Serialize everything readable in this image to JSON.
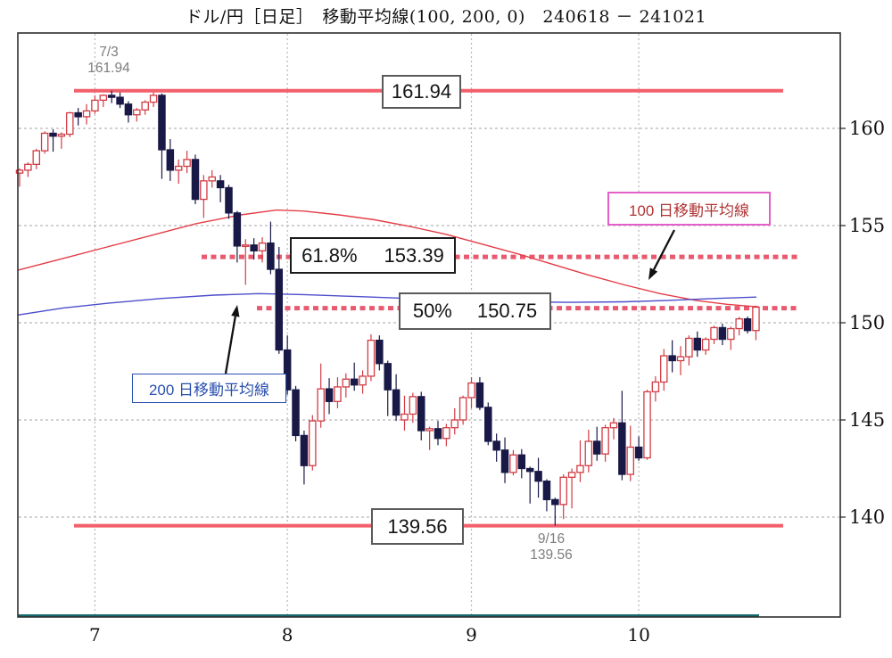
{
  "title": "ドル/円［日足］　移動平均線(100, 200, 0)　240618 － 241021",
  "price_boxes": {
    "resistance": "161.94",
    "support": "139.56"
  },
  "fib_labels": {
    "p618": {
      "pct": "61.8%",
      "price": "153.39"
    },
    "p50": {
      "pct": "50%",
      "price": "150.75"
    }
  },
  "ma_labels": {
    "ma100": "100 日移動平均線",
    "ma200": "200 日移動平均線"
  },
  "peak_annotation": {
    "date": "7/3",
    "price": "161.94"
  },
  "trough_annotation": {
    "date": "9/16",
    "price": "139.56"
  },
  "colors": {
    "solid_level_line": "#f2606b",
    "dotted_level_line": "#e85a6e",
    "candle_up": "#d23c44",
    "candle_down": "#191947",
    "ma100_line": "#e43d47",
    "ma200_line": "#4d4dcc",
    "ma100_box_border": "#e45fc8",
    "ma100_box_text": "#b03535",
    "ma200_box": "#2a4fae",
    "baseline": "#176b70",
    "grid": "#b8b8b8",
    "frame": "#2f2f2f",
    "annotation_text": "#7d7d7d"
  },
  "chart_data": {
    "type": "candlestick",
    "instrument": "ドル/円",
    "timeframe": "日足",
    "ma_settings": "移動平均線(100, 200, 0)",
    "period_start": "240618",
    "period_end": "241021",
    "y_axis": {
      "tick_labels": [
        "160",
        "155",
        "150",
        "145",
        "140"
      ],
      "tick_values": [
        160,
        155,
        150,
        145,
        140
      ],
      "range": [
        138.6,
        162.9
      ]
    },
    "x_axis": {
      "month_tick_labels": [
        "7",
        "8",
        "9",
        "10"
      ],
      "month_tick_candle_indices": [
        9,
        32,
        54,
        74
      ]
    },
    "levels": {
      "resistance": 161.94,
      "support": 139.56,
      "fib_61_8": 153.39,
      "fib_50": 150.75
    },
    "dates": [
      "6/18",
      "6/19",
      "6/20",
      "6/21",
      "6/24",
      "6/25",
      "6/26",
      "6/27",
      "6/28",
      "7/1",
      "7/2",
      "7/3",
      "7/4",
      "7/5",
      "7/8",
      "7/9",
      "7/10",
      "7/11",
      "7/12",
      "7/15",
      "7/16",
      "7/17",
      "7/18",
      "7/19",
      "7/22",
      "7/23",
      "7/24",
      "7/25",
      "7/26",
      "7/29",
      "7/30",
      "7/31",
      "8/1",
      "8/2",
      "8/5",
      "8/6",
      "8/7",
      "8/8",
      "8/9",
      "8/12",
      "8/13",
      "8/14",
      "8/15",
      "8/16",
      "8/19",
      "8/20",
      "8/21",
      "8/22",
      "8/23",
      "8/26",
      "8/27",
      "8/28",
      "8/29",
      "8/30",
      "9/2",
      "9/3",
      "9/4",
      "9/5",
      "9/6",
      "9/9",
      "9/10",
      "9/11",
      "9/12",
      "9/13",
      "9/16",
      "9/17",
      "9/18",
      "9/19",
      "9/20",
      "9/24",
      "9/25",
      "9/26",
      "9/27",
      "9/30",
      "10/1",
      "10/2",
      "10/3",
      "10/4",
      "10/7",
      "10/8",
      "10/9",
      "10/10",
      "10/11",
      "10/14",
      "10/15",
      "10/16",
      "10/17",
      "10/18",
      "10/21"
    ],
    "candles": [
      [
        157.7,
        157.95,
        157.0,
        157.85
      ],
      [
        157.85,
        158.25,
        157.5,
        158.15
      ],
      [
        158.15,
        158.95,
        157.9,
        158.85
      ],
      [
        158.85,
        159.85,
        158.7,
        159.75
      ],
      [
        159.75,
        159.95,
        158.8,
        159.6
      ],
      [
        159.6,
        159.8,
        158.95,
        159.7
      ],
      [
        159.7,
        160.85,
        159.55,
        160.8
      ],
      [
        160.8,
        161.05,
        160.15,
        160.6
      ],
      [
        160.6,
        161.25,
        160.2,
        160.9
      ],
      [
        160.9,
        161.7,
        160.75,
        161.45
      ],
      [
        161.45,
        161.75,
        161.1,
        161.7
      ],
      [
        161.7,
        161.94,
        161.3,
        161.6
      ],
      [
        161.6,
        161.85,
        161.05,
        161.25
      ],
      [
        161.25,
        161.4,
        160.3,
        160.7
      ],
      [
        160.7,
        161.05,
        160.35,
        160.95
      ],
      [
        160.95,
        161.45,
        160.7,
        161.35
      ],
      [
        161.35,
        161.85,
        161.1,
        161.7
      ],
      [
        161.7,
        161.8,
        157.4,
        158.9
      ],
      [
        158.9,
        159.45,
        157.3,
        157.85
      ],
      [
        157.85,
        158.4,
        157.15,
        158.05
      ],
      [
        158.05,
        158.85,
        157.7,
        158.4
      ],
      [
        158.4,
        158.65,
        156.1,
        156.35
      ],
      [
        156.35,
        157.6,
        155.4,
        157.3
      ],
      [
        157.3,
        157.85,
        156.95,
        157.5
      ],
      [
        157.3,
        157.6,
        156.2,
        156.95
      ],
      [
        156.95,
        157.1,
        155.35,
        155.65
      ],
      [
        155.65,
        155.75,
        153.1,
        153.95
      ],
      [
        153.95,
        154.3,
        151.95,
        154.0
      ],
      [
        154.0,
        154.35,
        153.25,
        153.7
      ],
      [
        153.7,
        154.4,
        153.1,
        154.1
      ],
      [
        154.1,
        155.2,
        152.5,
        152.75
      ],
      [
        152.75,
        153.9,
        148.4,
        148.6
      ],
      [
        148.6,
        149.35,
        146.3,
        146.55
      ],
      [
        146.55,
        146.75,
        143.9,
        144.2
      ],
      [
        144.2,
        144.45,
        141.68,
        142.65
      ],
      [
        142.65,
        145.25,
        142.4,
        144.95
      ],
      [
        144.95,
        147.9,
        144.6,
        146.6
      ],
      [
        146.6,
        147.15,
        145.3,
        145.95
      ],
      [
        145.95,
        147.2,
        145.6,
        146.7
      ],
      [
        146.7,
        147.4,
        146.15,
        147.1
      ],
      [
        147.1,
        147.95,
        146.5,
        146.8
      ],
      [
        146.8,
        147.55,
        146.35,
        147.25
      ],
      [
        147.25,
        149.4,
        147.0,
        149.1
      ],
      [
        149.1,
        149.35,
        147.55,
        147.9
      ],
      [
        147.9,
        148.05,
        145.2,
        146.55
      ],
      [
        146.55,
        147.35,
        144.95,
        145.25
      ],
      [
        145.0,
        146.25,
        144.45,
        145.3
      ],
      [
        145.3,
        146.4,
        144.85,
        146.2
      ],
      [
        146.2,
        146.45,
        143.95,
        144.45
      ],
      [
        144.45,
        144.65,
        143.45,
        144.55
      ],
      [
        144.55,
        144.95,
        143.7,
        144.05
      ],
      [
        144.05,
        144.8,
        143.65,
        144.6
      ],
      [
        144.6,
        145.6,
        144.25,
        145.0
      ],
      [
        145.0,
        146.25,
        144.75,
        146.15
      ],
      [
        146.15,
        147.2,
        145.6,
        146.9
      ],
      [
        146.9,
        147.2,
        145.5,
        145.65
      ],
      [
        145.65,
        145.9,
        143.7,
        143.9
      ],
      [
        143.9,
        144.3,
        142.85,
        143.45
      ],
      [
        143.45,
        144.1,
        141.75,
        142.3
      ],
      [
        142.3,
        143.45,
        142.15,
        143.2
      ],
      [
        143.2,
        143.5,
        142.0,
        142.5
      ],
      [
        142.5,
        142.6,
        140.7,
        142.35
      ],
      [
        142.35,
        143.05,
        141.0,
        141.85
      ],
      [
        141.85,
        141.95,
        140.3,
        140.9
      ],
      [
        140.9,
        141.0,
        139.56,
        140.65
      ],
      [
        140.65,
        142.2,
        139.9,
        142.05
      ],
      [
        142.05,
        142.5,
        140.45,
        142.3
      ],
      [
        142.3,
        143.95,
        141.8,
        142.65
      ],
      [
        142.65,
        144.5,
        142.3,
        143.9
      ],
      [
        143.9,
        144.65,
        142.9,
        143.25
      ],
      [
        143.25,
        144.75,
        142.85,
        144.6
      ],
      [
        144.6,
        145.1,
        144.0,
        144.85
      ],
      [
        144.85,
        146.5,
        141.9,
        142.2
      ],
      [
        142.2,
        144.7,
        141.85,
        143.6
      ],
      [
        143.6,
        144.15,
        142.9,
        143.05
      ],
      [
        143.05,
        146.55,
        142.95,
        146.45
      ],
      [
        146.45,
        147.25,
        145.95,
        146.95
      ],
      [
        146.95,
        148.65,
        146.5,
        148.3
      ],
      [
        148.3,
        149.1,
        147.45,
        148.05
      ],
      [
        148.05,
        148.8,
        147.3,
        148.25
      ],
      [
        148.25,
        149.35,
        147.8,
        149.2
      ],
      [
        149.2,
        149.55,
        148.25,
        148.6
      ],
      [
        148.6,
        149.25,
        148.35,
        149.15
      ],
      [
        149.15,
        149.85,
        148.9,
        149.75
      ],
      [
        149.75,
        149.95,
        148.85,
        149.15
      ],
      [
        149.15,
        149.8,
        148.6,
        149.7
      ],
      [
        149.7,
        150.3,
        149.35,
        150.2
      ],
      [
        150.2,
        150.32,
        149.45,
        149.6
      ],
      [
        149.6,
        150.88,
        149.1,
        150.8
      ]
    ],
    "ma100_points": [
      [
        20,
        152.7
      ],
      [
        70,
        153.3
      ],
      [
        120,
        153.9
      ],
      [
        170,
        154.5
      ],
      [
        220,
        155.1
      ],
      [
        270,
        155.55
      ],
      [
        310,
        155.8
      ],
      [
        340,
        155.75
      ],
      [
        380,
        155.55
      ],
      [
        420,
        155.3
      ],
      [
        460,
        154.95
      ],
      [
        500,
        154.55
      ],
      [
        540,
        154.05
      ],
      [
        580,
        153.55
      ],
      [
        620,
        153.0
      ],
      [
        660,
        152.45
      ],
      [
        700,
        151.95
      ],
      [
        740,
        151.5
      ],
      [
        780,
        151.15
      ],
      [
        815,
        150.95
      ],
      [
        848,
        150.82
      ]
    ],
    "ma200_points": [
      [
        20,
        150.4
      ],
      [
        70,
        150.75
      ],
      [
        120,
        151.0
      ],
      [
        180,
        151.25
      ],
      [
        240,
        151.42
      ],
      [
        290,
        151.5
      ],
      [
        340,
        151.45
      ],
      [
        400,
        151.35
      ],
      [
        460,
        151.25
      ],
      [
        520,
        151.15
      ],
      [
        580,
        151.08
      ],
      [
        640,
        151.05
      ],
      [
        700,
        151.08
      ],
      [
        750,
        151.15
      ],
      [
        800,
        151.25
      ],
      [
        848,
        151.32
      ]
    ],
    "legend_position": "none",
    "grid": true
  }
}
